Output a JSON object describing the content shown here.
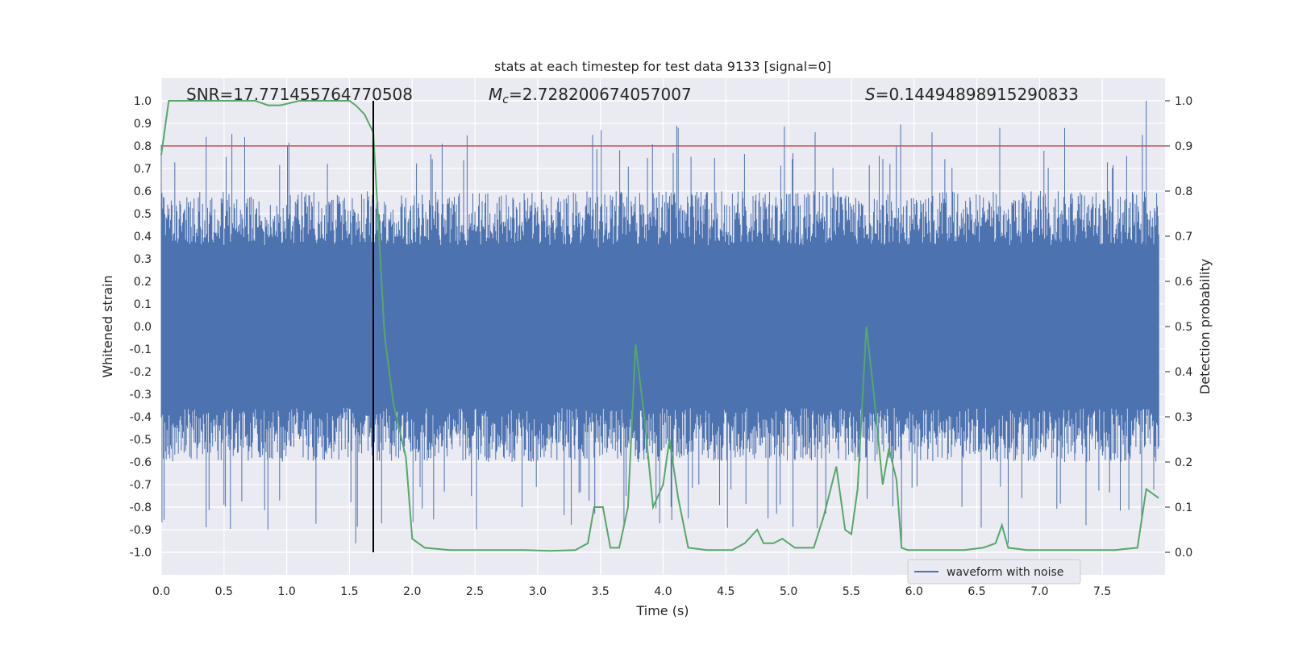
{
  "chart_data": {
    "type": "line",
    "title": "stats at each timestep for test data 9133 [signal=0]",
    "xlabel": "Time (s)",
    "ylabel": "Whitened strain",
    "y2label": "Detection probability",
    "xlim": [
      0.0,
      8.0
    ],
    "ylim": [
      -1.1,
      1.1
    ],
    "y2lim": [
      -0.05,
      1.05
    ],
    "xticks": [
      0.0,
      0.5,
      1.0,
      1.5,
      2.0,
      2.5,
      3.0,
      3.5,
      4.0,
      4.5,
      5.0,
      5.5,
      6.0,
      6.5,
      7.0,
      7.5
    ],
    "xtick_labels": [
      "0.0",
      "0.5",
      "1.0",
      "1.5",
      "2.0",
      "2.5",
      "3.0",
      "3.5",
      "4.0",
      "4.5",
      "5.0",
      "5.5",
      "6.0",
      "6.5",
      "7.0",
      "7.5"
    ],
    "yticks": [
      1.0,
      0.9,
      0.8,
      0.7,
      0.6,
      0.5,
      0.4,
      0.3,
      0.2,
      0.1,
      0.0,
      -0.1,
      -0.2,
      -0.3,
      -0.4,
      -0.5,
      -0.6,
      -0.7,
      -0.8,
      -0.9,
      -1.0
    ],
    "ytick_labels": [
      "1.0",
      "0.9",
      "0.8",
      "0.7",
      "0.6",
      "0.5",
      "0.4",
      "0.3",
      "0.2",
      "0.1",
      "0.0",
      "-0.1",
      "-0.2",
      "-0.3",
      "-0.4",
      "-0.5",
      "-0.6",
      "-0.7",
      "-0.8",
      "-0.9",
      "-1.0"
    ],
    "y2ticks": [
      1.0,
      0.9,
      0.8,
      0.7,
      0.6,
      0.5,
      0.4,
      0.3,
      0.2,
      0.1,
      0.0
    ],
    "y2tick_labels": [
      "1.0",
      "0.9",
      "0.8",
      "0.7",
      "0.6",
      "0.5",
      "0.4",
      "0.3",
      "0.2",
      "0.1",
      "0.0"
    ],
    "grid": true,
    "annotations": {
      "snr": "SNR=17.771455764770508",
      "mc_symbol": "M",
      "mc_subscript": "c",
      "mc_value": "=2.728200674057007",
      "s_symbol": "S",
      "s_value": "=0.14494898915290833"
    },
    "threshold": {
      "value": 0.9,
      "axis": "y2",
      "color": "#c44e52"
    },
    "marker_line": {
      "x": 1.69,
      "color": "#000000"
    },
    "waveform": {
      "name": "waveform with noise",
      "color": "#4c72b0",
      "sample_count": 1400,
      "seed": 9133,
      "core_amplitude": 0.36,
      "typical_peak": 0.55,
      "max_peak": 1.0,
      "min_trough": -0.96
    },
    "probability": {
      "name": "detection probability",
      "color": "#55a868",
      "x": [
        0.0,
        0.06,
        0.25,
        0.5,
        0.75,
        0.85,
        0.95,
        1.1,
        1.3,
        1.5,
        1.55,
        1.62,
        1.69,
        1.78,
        1.85,
        1.95,
        2.0,
        2.1,
        2.3,
        2.5,
        2.65,
        2.9,
        3.1,
        3.3,
        3.4,
        3.45,
        3.52,
        3.58,
        3.65,
        3.72,
        3.78,
        3.85,
        3.92,
        4.0,
        4.05,
        4.12,
        4.2,
        4.35,
        4.55,
        4.65,
        4.75,
        4.8,
        4.88,
        4.95,
        5.05,
        5.2,
        5.28,
        5.38,
        5.45,
        5.5,
        5.55,
        5.62,
        5.68,
        5.75,
        5.8,
        5.86,
        5.9,
        5.95,
        6.1,
        6.4,
        6.55,
        6.65,
        6.7,
        6.75,
        6.9,
        7.2,
        7.6,
        7.78,
        7.85,
        7.95
      ],
      "y": [
        0.88,
        1.0,
        1.0,
        1.0,
        1.0,
        0.99,
        0.99,
        1.0,
        1.0,
        1.0,
        0.99,
        0.97,
        0.93,
        0.48,
        0.33,
        0.21,
        0.03,
        0.01,
        0.005,
        0.005,
        0.005,
        0.005,
        0.003,
        0.005,
        0.02,
        0.1,
        0.1,
        0.01,
        0.01,
        0.1,
        0.46,
        0.3,
        0.1,
        0.15,
        0.25,
        0.12,
        0.01,
        0.005,
        0.005,
        0.02,
        0.05,
        0.02,
        0.02,
        0.03,
        0.01,
        0.01,
        0.08,
        0.19,
        0.05,
        0.04,
        0.14,
        0.5,
        0.35,
        0.15,
        0.23,
        0.16,
        0.01,
        0.005,
        0.005,
        0.005,
        0.01,
        0.02,
        0.06,
        0.01,
        0.005,
        0.005,
        0.005,
        0.01,
        0.14,
        0.12
      ]
    },
    "legend": {
      "label": "waveform with noise",
      "placement": "lower-right"
    }
  }
}
